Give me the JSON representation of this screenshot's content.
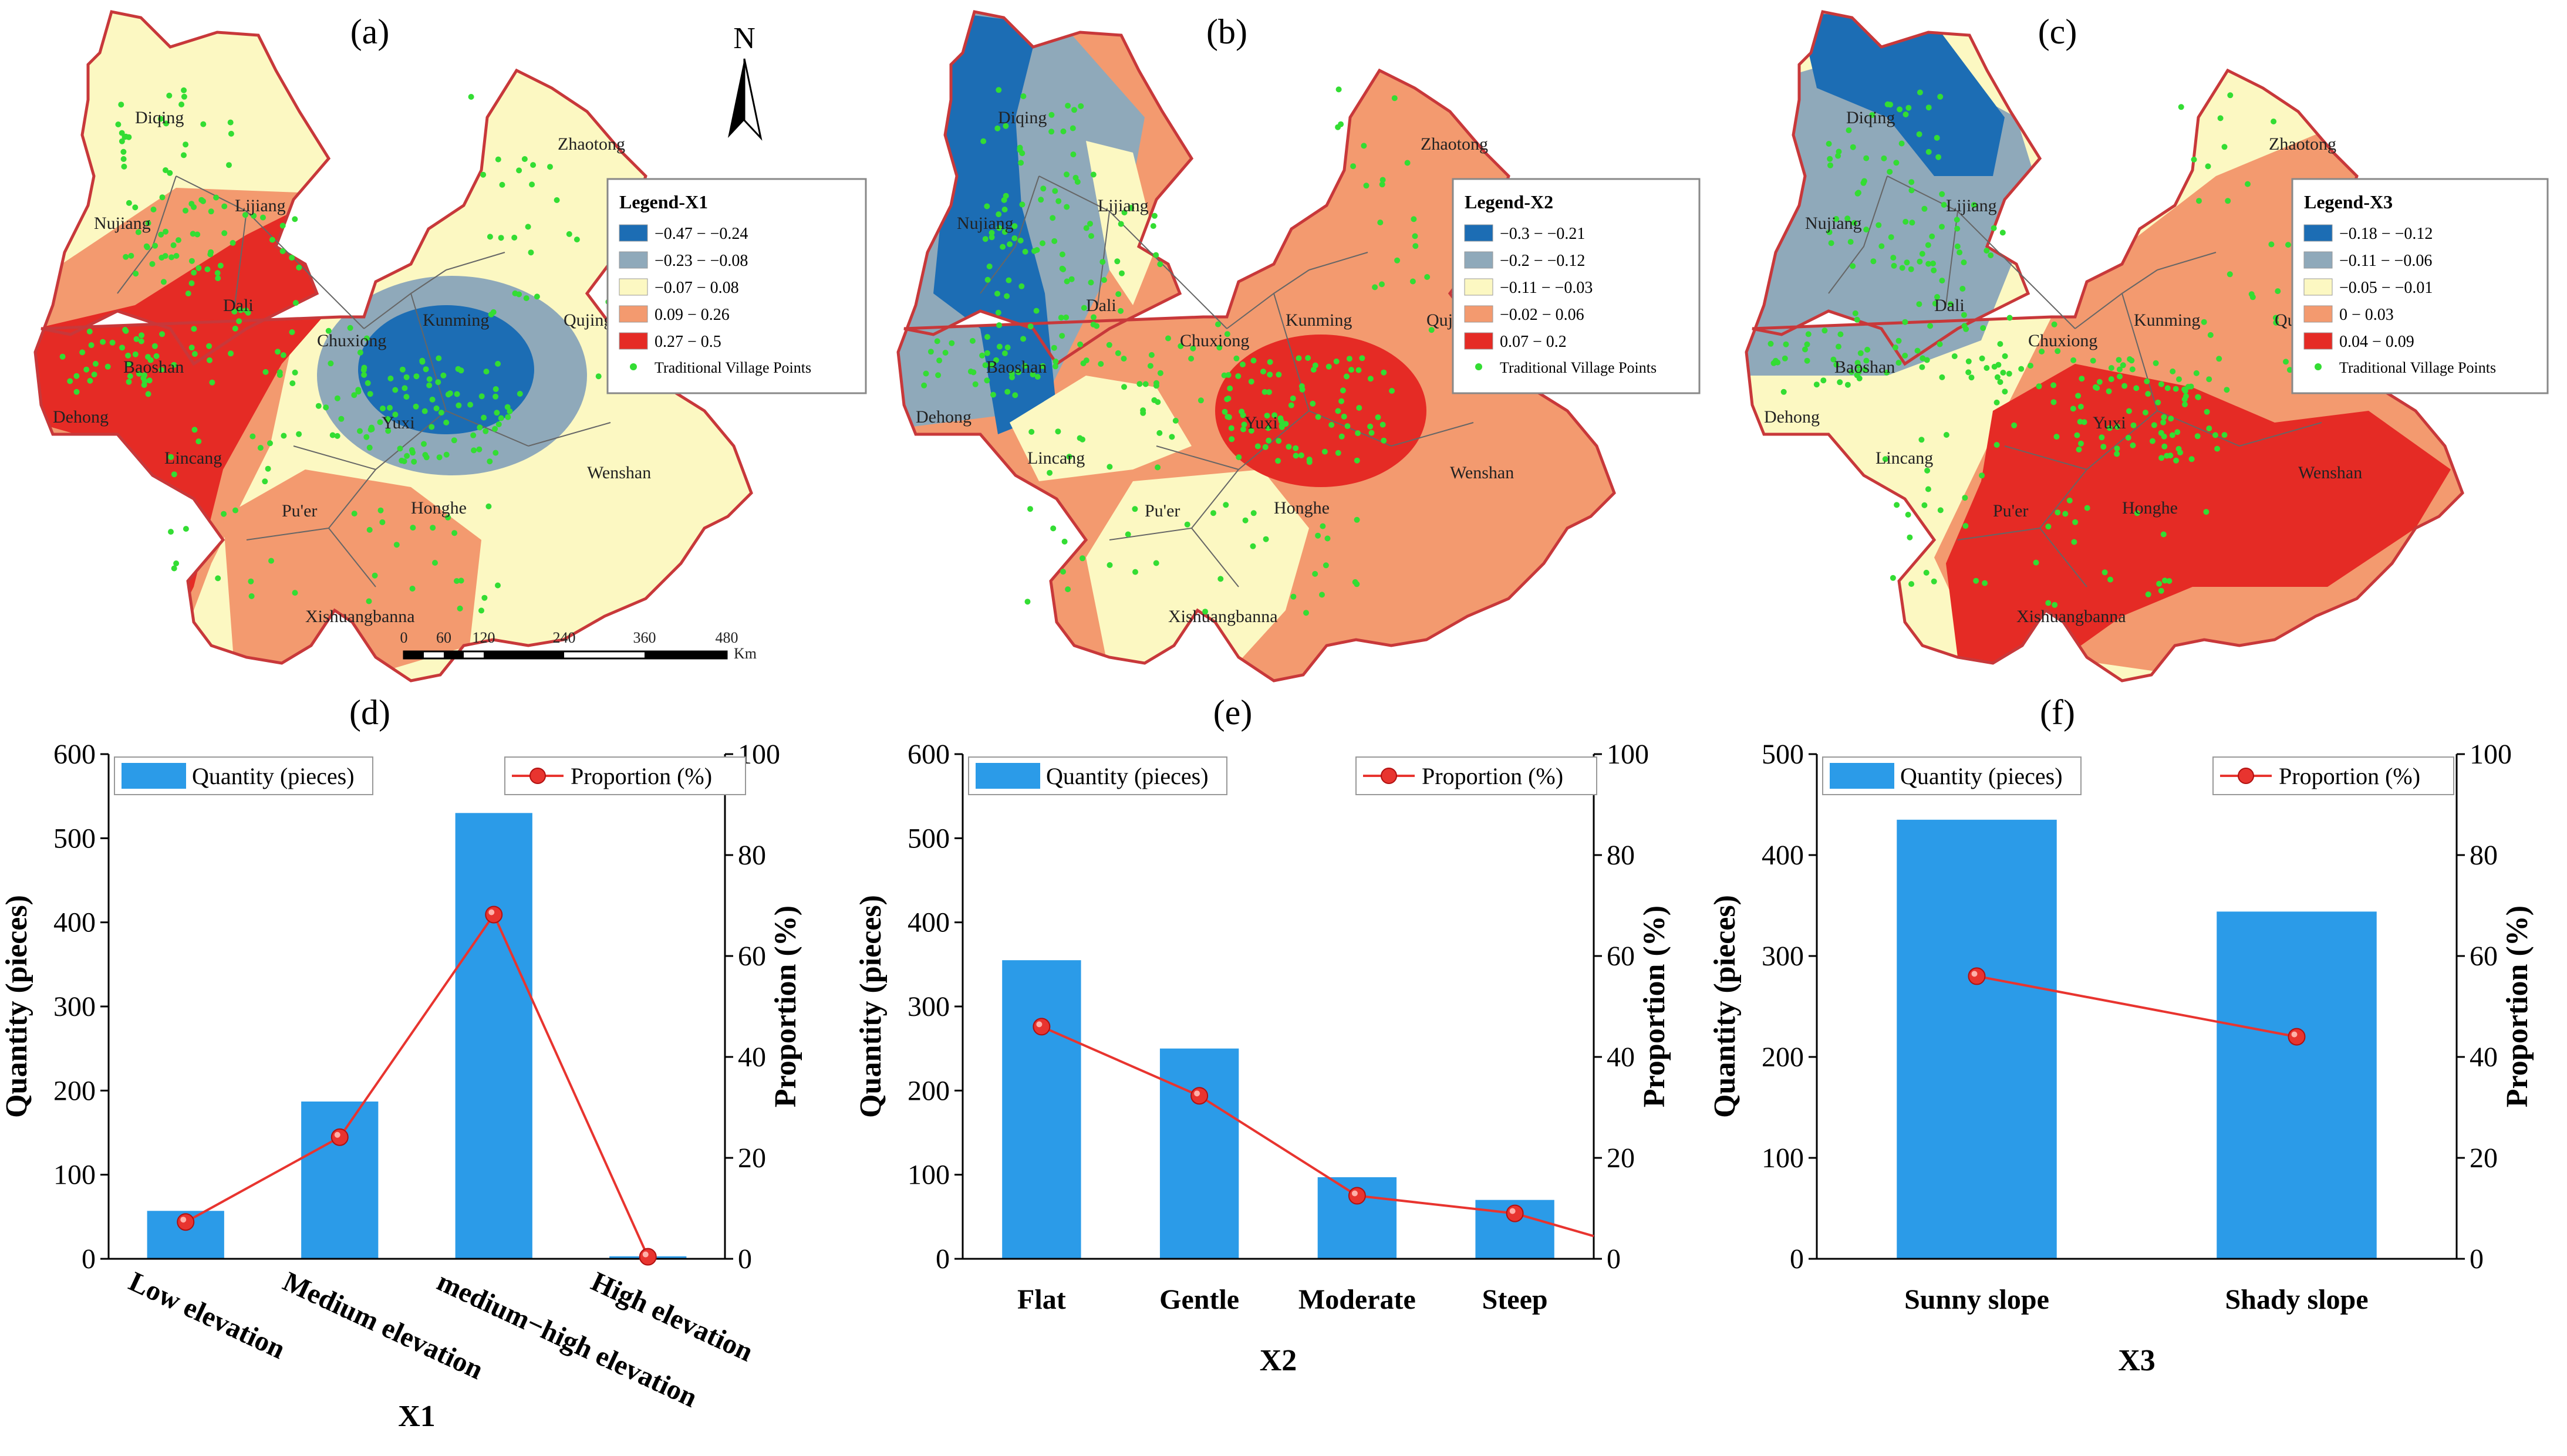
{
  "colors": {
    "bar": "#2b9be8",
    "line": "#e8342f",
    "c1": "#1c6db4",
    "c2": "#8fa9ba",
    "c3": "#fcf8c2",
    "c4": "#f39a6f",
    "c5": "#e52b25",
    "border": "#c8383a",
    "points": "#33dd33"
  },
  "maps": [
    {
      "label": "(a)",
      "legend_title": "Legend-X1",
      "legend_items": [
        "−0.47 − −0.24",
        "−0.23 − −0.08",
        "−0.07 − 0.08",
        "0.09 − 0.26",
        "0.27 − 0.5"
      ],
      "points_label": "Traditional Village Points",
      "north": "N",
      "scale_ticks": [
        "0",
        "60",
        "120",
        "240",
        "360",
        "480"
      ],
      "scale_unit": "Km"
    },
    {
      "label": "(b)",
      "legend_title": "Legend-X2",
      "legend_items": [
        "−0.3 − −0.21",
        "−0.2 − −0.12",
        "−0.11 − −0.03",
        "−0.02 − 0.06",
        "0.07 − 0.2"
      ],
      "points_label": "Traditional Village Points"
    },
    {
      "label": "(c)",
      "legend_title": "Legend-X3",
      "legend_items": [
        "−0.18 − −0.12",
        "−0.11 − −0.06",
        "−0.05 − −0.01",
        "0 − 0.03",
        "0.04 − 0.09"
      ],
      "points_label": "Traditional Village Points"
    }
  ],
  "cities": [
    "Diqing",
    "Nujiang",
    "Lijiang",
    "Dali",
    "Baoshan",
    "Dehong",
    "Lincang",
    "Pu'er",
    "Xishuangbanna",
    "Chuxiong",
    "Kunming",
    "Yuxi",
    "Honghe",
    "Wenshan",
    "Qujing",
    "Zhaotong"
  ],
  "chart_data": [
    {
      "label": "(d)",
      "type": "bar",
      "categories": [
        "Low elevation",
        "Medium elevation",
        "medium−high elevation",
        "High elevation"
      ],
      "series": [
        {
          "name": "Quantity (pieces)",
          "type": "bar",
          "axis": "left",
          "values": [
            57,
            187,
            530,
            3
          ]
        },
        {
          "name": "Proportion (%)",
          "type": "line",
          "axis": "right",
          "values": [
            7.3,
            24.1,
            68.2,
            0.4
          ]
        }
      ],
      "xlabel": "X1",
      "ylabel": "Quantity (pieces)",
      "y2label": "Proportion (%)",
      "ylim": [
        0,
        600
      ],
      "yticks": [
        "0",
        "100",
        "200",
        "300",
        "400",
        "500",
        "600"
      ],
      "y2lim": [
        0,
        100
      ],
      "y2ticks": [
        "0",
        "20",
        "40",
        "60",
        "80",
        "100"
      ]
    },
    {
      "label": "(e)",
      "type": "bar",
      "categories": [
        "Flat",
        "Gentle",
        "Moderate",
        "Steep"
      ],
      "series": [
        {
          "name": "Quantity (pieces)",
          "type": "bar",
          "axis": "left",
          "values": [
            355,
            250,
            97,
            70
          ]
        },
        {
          "name": "Proportion (%)",
          "type": "line",
          "axis": "right",
          "values": [
            46,
            32.3,
            12.5,
            9
          ]
        }
      ],
      "xlabel": "X2",
      "ylabel": "Quantity (pieces)",
      "y2label": "Proportion (%)",
      "ylim": [
        0,
        600
      ],
      "yticks": [
        "0",
        "100",
        "200",
        "300",
        "400",
        "500",
        "600"
      ],
      "y2lim": [
        0,
        100
      ],
      "y2ticks": [
        "0",
        "20",
        "40",
        "60",
        "80",
        "100"
      ]
    },
    {
      "label": "(f)",
      "type": "bar",
      "categories": [
        "Sunny slope",
        "Shady slope"
      ],
      "series": [
        {
          "name": "Quantity (pieces)",
          "type": "bar",
          "axis": "left",
          "values": [
            435,
            344
          ]
        },
        {
          "name": "Proportion (%)",
          "type": "line",
          "axis": "right",
          "values": [
            56,
            44
          ]
        }
      ],
      "xlabel": "X3",
      "ylabel": "Quantity (pieces)",
      "y2label": "Proportion (%)",
      "ylim": [
        0,
        500
      ],
      "yticks": [
        "0",
        "100",
        "200",
        "300",
        "400",
        "500"
      ],
      "y2lim": [
        0,
        100
      ],
      "y2ticks": [
        "0",
        "20",
        "40",
        "60",
        "80",
        "100"
      ]
    }
  ]
}
